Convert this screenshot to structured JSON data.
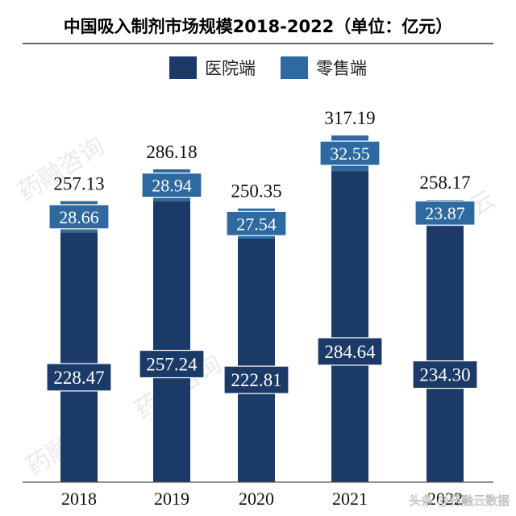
{
  "chart_data": {
    "type": "bar",
    "stacked": true,
    "title": "中国吸入制剂市场规模2018-2022（单位：亿元）",
    "categories": [
      "2018",
      "2019",
      "2020",
      "2021",
      "2022"
    ],
    "series": [
      {
        "name": "医院端",
        "values": [
          228.47,
          257.24,
          222.81,
          284.64,
          234.3
        ],
        "labels": [
          "228.47",
          "257.24",
          "222.81",
          "284.64",
          "234.30"
        ],
        "color": "#1b3a68"
      },
      {
        "name": "零售端",
        "values": [
          28.66,
          28.94,
          27.54,
          32.55,
          23.87
        ],
        "labels": [
          "28.66",
          "28.94",
          "27.54",
          "32.55",
          "23.87"
        ],
        "color": "#2e6aa0"
      }
    ],
    "totals": [
      257.13,
      286.18,
      250.35,
      317.19,
      258.17
    ],
    "total_labels": [
      "257.13",
      "286.18",
      "250.35",
      "317.19",
      "258.17"
    ],
    "ylim": [
      0,
      330
    ],
    "legend_position": "top-center",
    "grid": false
  },
  "watermark": {
    "text": "药融咨询",
    "text2": "药融云",
    "footer": "头条 @药融云数据"
  }
}
